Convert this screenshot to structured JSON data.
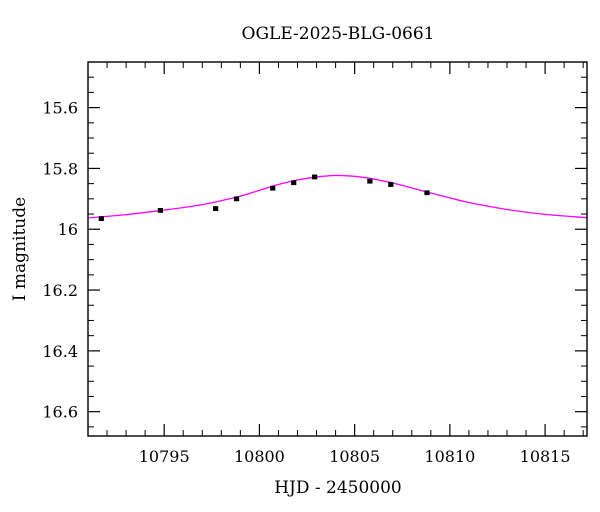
{
  "chart_data": {
    "type": "scatter",
    "title": "OGLE-2025-BLG-0661",
    "xlabel": "HJD - 2450000",
    "ylabel": "I magnitude",
    "xlim": [
      10791.0,
      10817.2
    ],
    "ylim": [
      16.68,
      15.45
    ],
    "y_inverted": true,
    "x_ticks": [
      10795,
      10800,
      10805,
      10810,
      10815
    ],
    "x_tick_labels": [
      "10795",
      "10800",
      "10805",
      "10810",
      "10815"
    ],
    "x_minor_step": 1,
    "y_ticks": [
      15.6,
      15.8,
      16.0,
      16.2,
      16.4,
      16.6
    ],
    "y_tick_labels": [
      "15.6",
      "15.8",
      "16",
      "16.2",
      "16.4",
      "16.6"
    ],
    "y_minor_step": 0.05,
    "grid": false,
    "legend": "none",
    "series": [
      {
        "kind": "points",
        "color": "#000000",
        "x": [
          10791.7,
          10794.8,
          10797.7,
          10798.8,
          10800.7,
          10801.8,
          10802.9,
          10805.8,
          10806.9,
          10808.8
        ],
        "y": [
          15.965,
          15.938,
          15.932,
          15.9,
          15.865,
          15.847,
          15.828,
          15.842,
          15.853,
          15.88
        ],
        "yerr": [
          0.007,
          0.007,
          0.007,
          0.007,
          0.007,
          0.007,
          0.007,
          0.007,
          0.007,
          0.007
        ]
      },
      {
        "kind": "model",
        "color": "#ff00ff",
        "x": [
          10791.0,
          10793.0,
          10795.0,
          10797.0,
          10799.0,
          10800.0,
          10801.0,
          10802.0,
          10803.0,
          10803.5,
          10804.0,
          10804.5,
          10805.0,
          10806.0,
          10807.0,
          10808.0,
          10809.0,
          10810.0,
          10811.0,
          10813.0,
          10815.0,
          10817.2
        ],
        "y": [
          15.963,
          15.952,
          15.937,
          15.919,
          15.891,
          15.872,
          15.853,
          15.838,
          15.828,
          15.825,
          15.823,
          15.824,
          15.826,
          15.835,
          15.848,
          15.864,
          15.881,
          15.897,
          15.912,
          15.935,
          15.951,
          15.962
        ]
      }
    ]
  }
}
